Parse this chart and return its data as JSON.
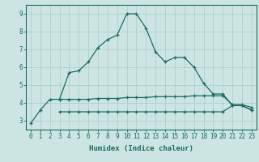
{
  "x": [
    0,
    1,
    2,
    3,
    4,
    5,
    6,
    7,
    8,
    9,
    10,
    11,
    12,
    13,
    14,
    15,
    16,
    17,
    18,
    19,
    20,
    21,
    22,
    23
  ],
  "line1": [
    2.85,
    3.6,
    4.2,
    4.2,
    5.7,
    5.8,
    6.3,
    7.1,
    7.55,
    7.8,
    9.0,
    9.0,
    8.2,
    6.85,
    6.3,
    6.55,
    6.55,
    6.0,
    5.1,
    4.5,
    4.5,
    3.85,
    3.85,
    3.6
  ],
  "line2": [
    null,
    null,
    null,
    4.2,
    4.2,
    4.2,
    4.2,
    4.25,
    4.25,
    4.25,
    4.3,
    4.3,
    4.3,
    4.35,
    4.35,
    4.35,
    4.35,
    4.4,
    4.4,
    4.4,
    4.4,
    3.9,
    3.9,
    3.75
  ],
  "line3": [
    null,
    null,
    null,
    3.5,
    3.5,
    3.5,
    3.5,
    3.5,
    3.5,
    3.5,
    3.5,
    3.5,
    3.5,
    3.5,
    3.5,
    3.5,
    3.5,
    3.5,
    3.5,
    3.5,
    3.5,
    3.85,
    3.85,
    3.6
  ],
  "line_color": "#1a6b5e",
  "bg_color": "#cce5e3",
  "grid_color": "#aecfcd",
  "axis_color": "#1a6b5e",
  "xlabel": "Humidex (Indice chaleur)",
  "ylim": [
    2.5,
    9.5
  ],
  "xlim": [
    -0.5,
    23.5
  ],
  "yticks": [
    3,
    4,
    5,
    6,
    7,
    8,
    9
  ],
  "xticks": [
    0,
    1,
    2,
    3,
    4,
    5,
    6,
    7,
    8,
    9,
    10,
    11,
    12,
    13,
    14,
    15,
    16,
    17,
    18,
    19,
    20,
    21,
    22,
    23
  ]
}
